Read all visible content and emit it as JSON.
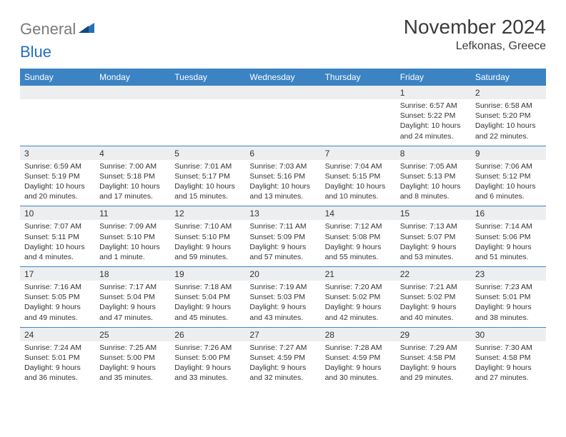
{
  "logo": {
    "gray": "General",
    "blue": "Blue"
  },
  "title": "November 2024",
  "location": "Lefkonas, Greece",
  "colors": {
    "header_bg": "#3b83c3",
    "header_text": "#ffffff",
    "daynum_bg": "#eceef0",
    "week_divider": "#3b83c3",
    "text": "#333333",
    "logo_gray": "#7a7a7a",
    "logo_blue": "#2270ba"
  },
  "day_names": [
    "Sunday",
    "Monday",
    "Tuesday",
    "Wednesday",
    "Thursday",
    "Friday",
    "Saturday"
  ],
  "weeks": [
    [
      null,
      null,
      null,
      null,
      null,
      {
        "n": "1",
        "sr": "6:57 AM",
        "ss": "5:22 PM",
        "dl": "10 hours and 24 minutes."
      },
      {
        "n": "2",
        "sr": "6:58 AM",
        "ss": "5:20 PM",
        "dl": "10 hours and 22 minutes."
      }
    ],
    [
      {
        "n": "3",
        "sr": "6:59 AM",
        "ss": "5:19 PM",
        "dl": "10 hours and 20 minutes."
      },
      {
        "n": "4",
        "sr": "7:00 AM",
        "ss": "5:18 PM",
        "dl": "10 hours and 17 minutes."
      },
      {
        "n": "5",
        "sr": "7:01 AM",
        "ss": "5:17 PM",
        "dl": "10 hours and 15 minutes."
      },
      {
        "n": "6",
        "sr": "7:03 AM",
        "ss": "5:16 PM",
        "dl": "10 hours and 13 minutes."
      },
      {
        "n": "7",
        "sr": "7:04 AM",
        "ss": "5:15 PM",
        "dl": "10 hours and 10 minutes."
      },
      {
        "n": "8",
        "sr": "7:05 AM",
        "ss": "5:13 PM",
        "dl": "10 hours and 8 minutes."
      },
      {
        "n": "9",
        "sr": "7:06 AM",
        "ss": "5:12 PM",
        "dl": "10 hours and 6 minutes."
      }
    ],
    [
      {
        "n": "10",
        "sr": "7:07 AM",
        "ss": "5:11 PM",
        "dl": "10 hours and 4 minutes."
      },
      {
        "n": "11",
        "sr": "7:09 AM",
        "ss": "5:10 PM",
        "dl": "10 hours and 1 minute."
      },
      {
        "n": "12",
        "sr": "7:10 AM",
        "ss": "5:10 PM",
        "dl": "9 hours and 59 minutes."
      },
      {
        "n": "13",
        "sr": "7:11 AM",
        "ss": "5:09 PM",
        "dl": "9 hours and 57 minutes."
      },
      {
        "n": "14",
        "sr": "7:12 AM",
        "ss": "5:08 PM",
        "dl": "9 hours and 55 minutes."
      },
      {
        "n": "15",
        "sr": "7:13 AM",
        "ss": "5:07 PM",
        "dl": "9 hours and 53 minutes."
      },
      {
        "n": "16",
        "sr": "7:14 AM",
        "ss": "5:06 PM",
        "dl": "9 hours and 51 minutes."
      }
    ],
    [
      {
        "n": "17",
        "sr": "7:16 AM",
        "ss": "5:05 PM",
        "dl": "9 hours and 49 minutes."
      },
      {
        "n": "18",
        "sr": "7:17 AM",
        "ss": "5:04 PM",
        "dl": "9 hours and 47 minutes."
      },
      {
        "n": "19",
        "sr": "7:18 AM",
        "ss": "5:04 PM",
        "dl": "9 hours and 45 minutes."
      },
      {
        "n": "20",
        "sr": "7:19 AM",
        "ss": "5:03 PM",
        "dl": "9 hours and 43 minutes."
      },
      {
        "n": "21",
        "sr": "7:20 AM",
        "ss": "5:02 PM",
        "dl": "9 hours and 42 minutes."
      },
      {
        "n": "22",
        "sr": "7:21 AM",
        "ss": "5:02 PM",
        "dl": "9 hours and 40 minutes."
      },
      {
        "n": "23",
        "sr": "7:23 AM",
        "ss": "5:01 PM",
        "dl": "9 hours and 38 minutes."
      }
    ],
    [
      {
        "n": "24",
        "sr": "7:24 AM",
        "ss": "5:01 PM",
        "dl": "9 hours and 36 minutes."
      },
      {
        "n": "25",
        "sr": "7:25 AM",
        "ss": "5:00 PM",
        "dl": "9 hours and 35 minutes."
      },
      {
        "n": "26",
        "sr": "7:26 AM",
        "ss": "5:00 PM",
        "dl": "9 hours and 33 minutes."
      },
      {
        "n": "27",
        "sr": "7:27 AM",
        "ss": "4:59 PM",
        "dl": "9 hours and 32 minutes."
      },
      {
        "n": "28",
        "sr": "7:28 AM",
        "ss": "4:59 PM",
        "dl": "9 hours and 30 minutes."
      },
      {
        "n": "29",
        "sr": "7:29 AM",
        "ss": "4:58 PM",
        "dl": "9 hours and 29 minutes."
      },
      {
        "n": "30",
        "sr": "7:30 AM",
        "ss": "4:58 PM",
        "dl": "9 hours and 27 minutes."
      }
    ]
  ],
  "labels": {
    "sunrise": "Sunrise:",
    "sunset": "Sunset:",
    "daylight": "Daylight:"
  }
}
